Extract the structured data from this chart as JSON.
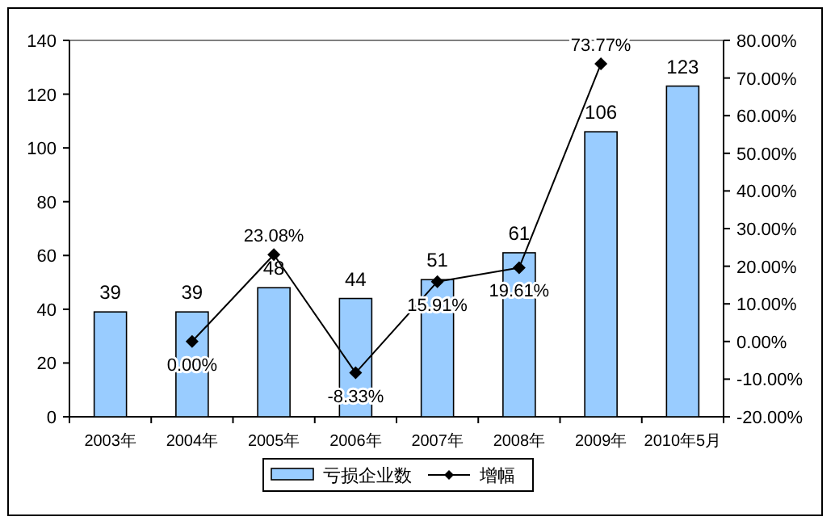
{
  "chart_data": {
    "type": "bar",
    "categories": [
      "2003年",
      "2004年",
      "2005年",
      "2006年",
      "2007年",
      "2008年",
      "2009年",
      "2010年5月"
    ],
    "series": [
      {
        "name": "亏损企业数",
        "color": "#99ccff",
        "values": [
          39,
          39,
          48,
          44,
          51,
          61,
          106,
          123
        ],
        "value_labels": [
          "39",
          "39",
          "48",
          "44",
          "51",
          "61",
          "106",
          "123"
        ]
      },
      {
        "name": "增幅",
        "type": "line",
        "axis": "y2",
        "color": "#000000",
        "marker": "diamond",
        "values": [
          null,
          0,
          23.08,
          -8.33,
          15.91,
          19.61,
          73.77,
          null
        ],
        "value_labels": [
          null,
          "0.00%",
          "23.08%",
          "-8.33%",
          "15.91%",
          "19.61%",
          "73.77%",
          null
        ]
      }
    ],
    "ylim": [
      0,
      140
    ],
    "yticks": [
      0,
      20,
      40,
      60,
      80,
      100,
      120,
      140
    ],
    "y2lim": [
      -20,
      80
    ],
    "y2ticks": [
      {
        "value": -20,
        "label": "-20.00%"
      },
      {
        "value": -10,
        "label": "-10.00%"
      },
      {
        "value": 0,
        "label": "0.00%"
      },
      {
        "value": 10,
        "label": "10.00%"
      },
      {
        "value": 20,
        "label": "20.00%"
      },
      {
        "value": 30,
        "label": "30.00%"
      },
      {
        "value": 40,
        "label": "40.00%"
      },
      {
        "value": 50,
        "label": "50.00%"
      },
      {
        "value": 60,
        "label": "60.00%"
      },
      {
        "value": 70,
        "label": "70.00%"
      },
      {
        "value": 80,
        "label": "80.00%"
      }
    ],
    "grid": false,
    "legend": "bottom"
  }
}
